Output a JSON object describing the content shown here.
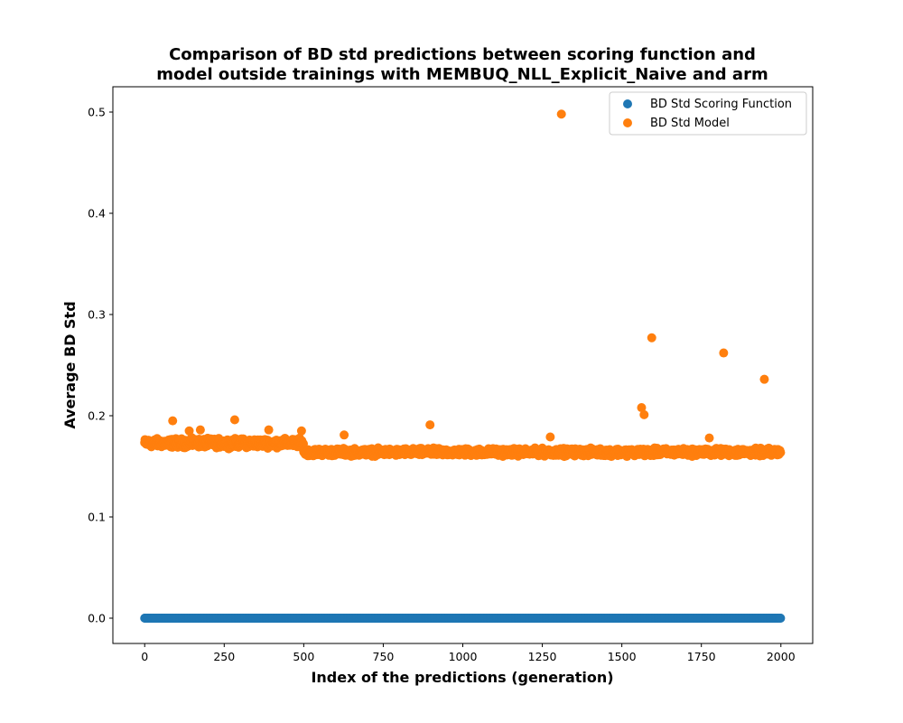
{
  "chart_data": {
    "type": "scatter",
    "title_lines": [
      "Comparison of BD std predictions between scoring function and",
      "model outside trainings with MEMBUQ_NLL_Explicit_Naive and arm"
    ],
    "xlabel": "Index of the predictions (generation)",
    "ylabel": "Average BD Std",
    "xlim": [
      -100,
      2100
    ],
    "ylim": [
      -0.025,
      0.525
    ],
    "xticks": [
      0,
      250,
      500,
      750,
      1000,
      1250,
      1500,
      1750,
      2000
    ],
    "yticks": [
      0.0,
      0.1,
      0.2,
      0.3,
      0.4,
      0.5
    ],
    "xtick_labels": [
      "0",
      "250",
      "500",
      "750",
      "1000",
      "1250",
      "1500",
      "1750",
      "2000"
    ],
    "ytick_labels": [
      "0.0",
      "0.1",
      "0.2",
      "0.3",
      "0.4",
      "0.5"
    ],
    "legend_position": "top-right",
    "n_points": 2000,
    "series": [
      {
        "name": "BD Std Scoring Function",
        "color": "#1f77b4",
        "constant_value": 0.0
      },
      {
        "name": "BD Std Model",
        "color": "#ff7f0e",
        "segments": [
          {
            "x_start": 0,
            "x_end": 499,
            "mean": 0.173,
            "spread": 0.006
          },
          {
            "x_start": 500,
            "x_end": 1999,
            "mean": 0.164,
            "spread": 0.005
          }
        ],
        "outliers": [
          {
            "x": 88,
            "y": 0.195
          },
          {
            "x": 140,
            "y": 0.185
          },
          {
            "x": 175,
            "y": 0.186
          },
          {
            "x": 283,
            "y": 0.196
          },
          {
            "x": 390,
            "y": 0.186
          },
          {
            "x": 493,
            "y": 0.185
          },
          {
            "x": 627,
            "y": 0.181
          },
          {
            "x": 897,
            "y": 0.191
          },
          {
            "x": 1275,
            "y": 0.179
          },
          {
            "x": 1310,
            "y": 0.498
          },
          {
            "x": 1562,
            "y": 0.208
          },
          {
            "x": 1570,
            "y": 0.201
          },
          {
            "x": 1594,
            "y": 0.277
          },
          {
            "x": 1775,
            "y": 0.178
          },
          {
            "x": 1820,
            "y": 0.262
          },
          {
            "x": 1948,
            "y": 0.236
          }
        ]
      }
    ]
  }
}
